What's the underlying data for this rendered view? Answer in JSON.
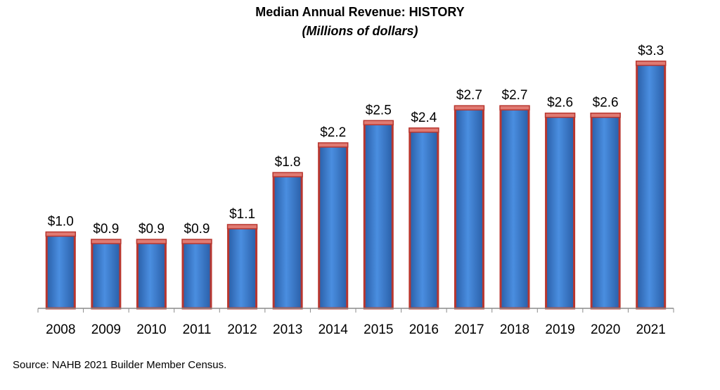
{
  "chart_data": {
    "type": "bar",
    "title": "Median Annual Revenue: HISTORY",
    "subtitle": "(Millions of dollars)",
    "categories": [
      "2008",
      "2009",
      "2010",
      "2011",
      "2012",
      "2013",
      "2014",
      "2015",
      "2016",
      "2017",
      "2018",
      "2019",
      "2020",
      "2021"
    ],
    "values": [
      1.0,
      0.9,
      0.9,
      0.9,
      1.1,
      1.8,
      2.2,
      2.5,
      2.4,
      2.7,
      2.7,
      2.6,
      2.6,
      3.3
    ],
    "value_labels": [
      "$1.0",
      "$0.9",
      "$0.9",
      "$0.9",
      "$1.1",
      "$1.8",
      "$2.2",
      "$2.5",
      "$2.4",
      "$2.7",
      "$2.7",
      "$2.6",
      "$2.6",
      "$3.3"
    ],
    "xlabel": "",
    "ylabel": "",
    "ylim": [
      0,
      3.5
    ],
    "grid": false,
    "legend": "none",
    "colors": {
      "bar_fill": "#3d7fd6",
      "bar_fill_dark": "#2a5fa8",
      "bar_outline": "#b8362f",
      "bar_cap": "#e07a72",
      "axis": "#8c8c8c"
    }
  },
  "source": "Source: NAHB 2021 Builder Member Census."
}
